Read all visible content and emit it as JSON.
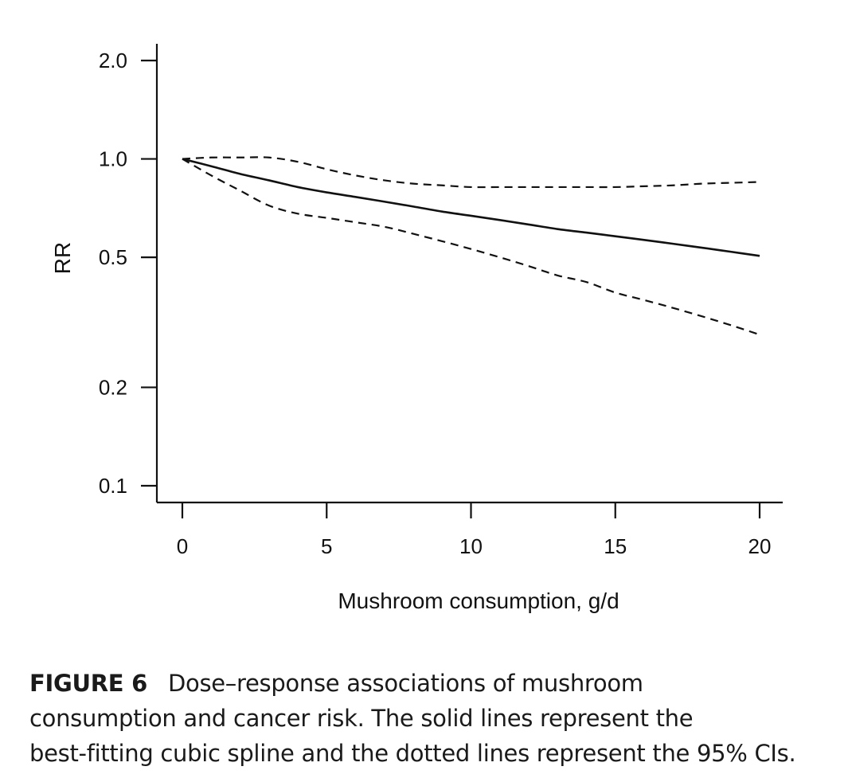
{
  "chart_data": {
    "type": "line",
    "title": "",
    "xlabel": "Mushroom consumption, g/d",
    "ylabel": "RR",
    "xlim": [
      -0.8,
      20.8
    ],
    "ylim": [
      0.1,
      2.0
    ],
    "yscale": "log",
    "x_ticks": [
      0,
      5,
      10,
      15,
      20
    ],
    "x_tick_labels": [
      "0",
      "5",
      "10",
      "15",
      "20"
    ],
    "y_ticks": [
      0.1,
      0.2,
      0.5,
      1.0,
      2.0
    ],
    "y_tick_labels": [
      "0.1",
      "0.2",
      "0.5",
      "1.0",
      "2.0"
    ],
    "grid": false,
    "series": [
      {
        "name": "Best-fitting cubic spline",
        "style": "solid",
        "x": [
          0,
          1,
          2,
          3,
          4,
          5,
          6,
          7,
          8,
          9,
          10,
          11,
          12,
          13,
          14,
          15,
          16,
          17,
          18,
          19,
          20
        ],
        "y": [
          1.0,
          0.95,
          0.9,
          0.86,
          0.82,
          0.79,
          0.765,
          0.74,
          0.715,
          0.69,
          0.67,
          0.65,
          0.63,
          0.61,
          0.595,
          0.58,
          0.565,
          0.55,
          0.535,
          0.52,
          0.505
        ]
      },
      {
        "name": "Upper 95% CI",
        "style": "dashed",
        "x": [
          0,
          1,
          2,
          3,
          4,
          5,
          6,
          7,
          8,
          9,
          10,
          11,
          12,
          13,
          14,
          15,
          16,
          17,
          18,
          19,
          20
        ],
        "y": [
          1.0,
          1.01,
          1.01,
          1.01,
          0.98,
          0.93,
          0.89,
          0.86,
          0.84,
          0.83,
          0.82,
          0.82,
          0.82,
          0.82,
          0.82,
          0.82,
          0.825,
          0.83,
          0.84,
          0.845,
          0.85
        ]
      },
      {
        "name": "Lower 95% CI",
        "style": "dashed",
        "x": [
          0,
          1,
          2,
          3,
          4,
          5,
          6,
          7,
          8,
          9,
          10,
          11,
          12,
          13,
          14,
          15,
          16,
          17,
          18,
          19,
          20
        ],
        "y": [
          1.0,
          0.89,
          0.8,
          0.72,
          0.68,
          0.66,
          0.64,
          0.62,
          0.59,
          0.56,
          0.53,
          0.5,
          0.47,
          0.44,
          0.42,
          0.39,
          0.37,
          0.35,
          0.33,
          0.31,
          0.29
        ]
      }
    ]
  },
  "caption": {
    "label": "FIGURE 6",
    "lines": [
      "Dose–response associations of mushroom",
      "consumption and cancer risk. The solid lines represent the",
      "best-fitting cubic spline and the dotted lines represent the 95% CIs."
    ]
  },
  "colors": {
    "ink": "#111111"
  }
}
